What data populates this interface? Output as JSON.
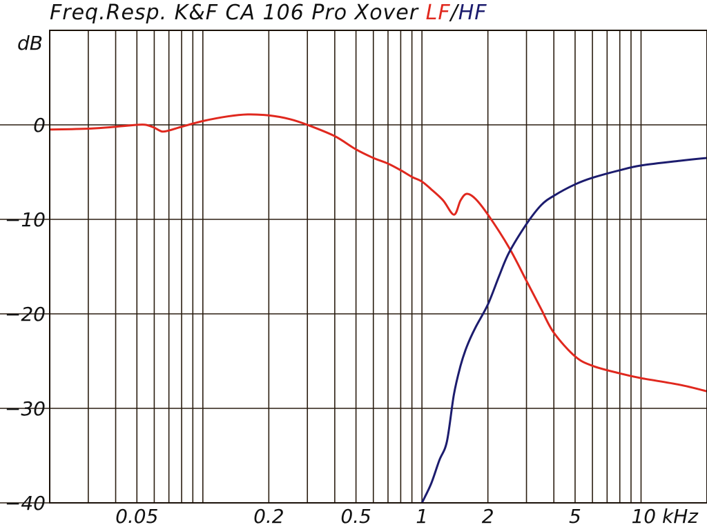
{
  "chart_data": {
    "type": "line",
    "title": "Freq.Resp. K&F CA 106 Pro Xover",
    "title_parts": {
      "lf": "LF",
      "sep": "/",
      "hf": "HF"
    },
    "ylabel": "dB",
    "xscale": "log",
    "xlim": [
      0.02,
      20
    ],
    "ylim": [
      -40,
      10
    ],
    "grid": true,
    "x_gridlines": [
      0.02,
      0.03,
      0.04,
      0.05,
      0.06,
      0.07,
      0.08,
      0.09,
      0.1,
      0.2,
      0.3,
      0.4,
      0.5,
      0.6,
      0.7,
      0.8,
      0.9,
      1,
      2,
      3,
      4,
      5,
      6,
      7,
      8,
      9,
      10,
      20
    ],
    "y_gridlines": [
      -40,
      -30,
      -20,
      -10,
      0
    ],
    "x_ticks": [
      {
        "value": 0.05,
        "label": "0.05"
      },
      {
        "value": 0.2,
        "label": "0.2"
      },
      {
        "value": 0.5,
        "label": "0.5"
      },
      {
        "value": 1,
        "label": "1"
      },
      {
        "value": 2,
        "label": "2"
      },
      {
        "value": 5,
        "label": "5"
      },
      {
        "value": 10,
        "label": "10 kHz"
      }
    ],
    "y_ticks": [
      {
        "value": 0,
        "label": "0"
      },
      {
        "value": -10,
        "label": "−10"
      },
      {
        "value": -20,
        "label": "−20"
      },
      {
        "value": -30,
        "label": "−30"
      },
      {
        "value": -40,
        "label": "−40"
      }
    ],
    "series": [
      {
        "name": "LF",
        "color": "#e0281e",
        "x": [
          0.02,
          0.03,
          0.04,
          0.05,
          0.055,
          0.06,
          0.065,
          0.07,
          0.08,
          0.1,
          0.13,
          0.16,
          0.2,
          0.25,
          0.3,
          0.4,
          0.5,
          0.6,
          0.7,
          0.8,
          0.9,
          1.0,
          1.1,
          1.25,
          1.4,
          1.5,
          1.6,
          1.75,
          2.0,
          2.5,
          3.0,
          3.5,
          4.0,
          5.0,
          6.0,
          8.0,
          10,
          15,
          20
        ],
        "y": [
          -0.5,
          -0.4,
          -0.2,
          0.0,
          0.0,
          -0.3,
          -0.7,
          -0.6,
          -0.2,
          0.4,
          0.9,
          1.1,
          1.0,
          0.6,
          0.0,
          -1.2,
          -2.6,
          -3.5,
          -4.1,
          -4.8,
          -5.5,
          -6.0,
          -6.8,
          -8.0,
          -9.5,
          -8.0,
          -7.3,
          -7.8,
          -9.5,
          -13.0,
          -16.5,
          -19.5,
          -22.0,
          -24.5,
          -25.5,
          -26.3,
          -26.8,
          -27.5,
          -28.2
        ]
      },
      {
        "name": "HF",
        "color": "#1c1c6e",
        "x": [
          1.0,
          1.1,
          1.2,
          1.3,
          1.4,
          1.5,
          1.6,
          1.75,
          2.0,
          2.25,
          2.5,
          3.0,
          3.5,
          4.0,
          5.0,
          6.0,
          8.0,
          10,
          15,
          20
        ],
        "y": [
          -40.0,
          -38.0,
          -35.5,
          -33.5,
          -28.5,
          -25.5,
          -23.5,
          -21.5,
          -19.0,
          -16.0,
          -13.5,
          -10.5,
          -8.5,
          -7.5,
          -6.3,
          -5.6,
          -4.8,
          -4.3,
          -3.8,
          -3.5
        ]
      }
    ]
  }
}
